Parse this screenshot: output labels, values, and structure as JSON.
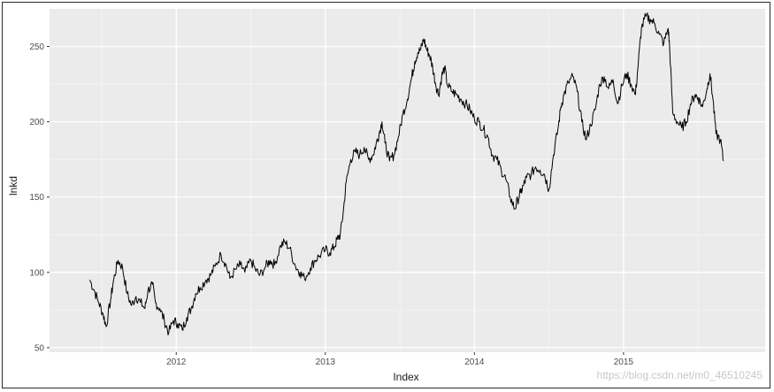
{
  "chart_data": {
    "type": "line",
    "title": "",
    "xlabel": "Index",
    "ylabel": "lnkd",
    "x_ticks": [
      2012,
      2013,
      2014,
      2015
    ],
    "x_tick_labels": [
      "2012",
      "2013",
      "2014",
      "2015"
    ],
    "y_ticks": [
      50,
      100,
      150,
      200,
      250
    ],
    "y_tick_labels": [
      "50",
      "100",
      "150",
      "200",
      "250"
    ],
    "xlim": [
      2011.15,
      2015.95
    ],
    "ylim": [
      47,
      275
    ],
    "grid": true,
    "legend": "none",
    "line_color": "#000000",
    "panel_color": "#ebebeb",
    "series": [
      {
        "x": [
          2011.42,
          2011.45,
          2011.48,
          2011.51,
          2011.53,
          2011.56,
          2011.58,
          2011.61,
          2011.64,
          2011.67,
          2011.7,
          2011.73,
          2011.76,
          2011.79,
          2011.81,
          2011.84,
          2011.86,
          2011.89,
          2011.92,
          2011.95,
          2011.98,
          2012.01,
          2012.04,
          2012.07,
          2012.1,
          2012.13,
          2012.16,
          2012.2,
          2012.23,
          2012.26,
          2012.3,
          2012.33,
          2012.36,
          2012.4,
          2012.43,
          2012.46,
          2012.5,
          2012.53,
          2012.56,
          2012.6,
          2012.63,
          2012.66,
          2012.7,
          2012.73,
          2012.76,
          2012.8,
          2012.83,
          2012.86,
          2012.9,
          2012.93,
          2012.96,
          2013.0,
          2013.03,
          2013.06,
          2013.08,
          2013.1,
          2013.12,
          2013.14,
          2013.17,
          2013.2,
          2013.23,
          2013.26,
          2013.29,
          2013.32,
          2013.34,
          2013.36,
          2013.38,
          2013.4,
          2013.43,
          2013.46,
          2013.49,
          2013.52,
          2013.55,
          2013.58,
          2013.6,
          2013.62,
          2013.64,
          2013.66,
          2013.68,
          2013.7,
          2013.72,
          2013.74,
          2013.76,
          2013.78,
          2013.8,
          2013.82,
          2013.85,
          2013.88,
          2013.91,
          2013.94,
          2013.97,
          2014.0,
          2014.03,
          2014.06,
          2014.09,
          2014.12,
          2014.15,
          2014.18,
          2014.21,
          2014.24,
          2014.27,
          2014.29,
          2014.31,
          2014.33,
          2014.35,
          2014.38,
          2014.41,
          2014.44,
          2014.47,
          2014.5,
          2014.53,
          2014.56,
          2014.58,
          2014.6,
          2014.63,
          2014.66,
          2014.69,
          2014.72,
          2014.75,
          2014.78,
          2014.81,
          2014.84,
          2014.87,
          2014.9,
          2014.93,
          2014.96,
          2014.99,
          2015.02,
          2015.05,
          2015.08,
          2015.1,
          2015.12,
          2015.15,
          2015.18,
          2015.21,
          2015.24,
          2015.27,
          2015.3,
          2015.31,
          2015.33,
          2015.36,
          2015.39,
          2015.42,
          2015.45,
          2015.48,
          2015.5,
          2015.53,
          2015.56,
          2015.58,
          2015.6,
          2015.62,
          2015.65,
          2015.67
        ],
        "y": [
          95,
          88,
          80,
          72,
          64,
          82,
          95,
          108,
          103,
          86,
          78,
          84,
          80,
          76,
          88,
          92,
          80,
          76,
          68,
          60,
          68,
          66,
          62,
          70,
          76,
          86,
          90,
          95,
          98,
          104,
          112,
          106,
          96,
          102,
          105,
          100,
          108,
          102,
          98,
          104,
          108,
          105,
          118,
          120,
          116,
          104,
          100,
          96,
          103,
          108,
          111,
          115,
          113,
          117,
          122,
          125,
          140,
          160,
          175,
          180,
          178,
          183,
          175,
          178,
          185,
          192,
          200,
          186,
          174,
          178,
          190,
          205,
          215,
          230,
          240,
          246,
          248,
          255,
          248,
          244,
          236,
          225,
          218,
          230,
          236,
          224,
          220,
          218,
          215,
          212,
          208,
          202,
          200,
          195,
          190,
          178,
          175,
          168,
          162,
          150,
          142,
          148,
          153,
          158,
          163,
          165,
          170,
          168,
          165,
          155,
          178,
          195,
          210,
          218,
          226,
          230,
          220,
          200,
          188,
          198,
          208,
          225,
          230,
          222,
          228,
          212,
          224,
          232,
          225,
          218,
          240,
          262,
          270,
          268,
          265,
          258,
          252,
          262,
          248,
          206,
          200,
          196,
          200,
          212,
          218,
          216,
          210,
          222,
          232,
          215,
          192,
          188,
          174
        ]
      }
    ]
  },
  "watermark": "https://blog.csdn.net/m0_46510245"
}
